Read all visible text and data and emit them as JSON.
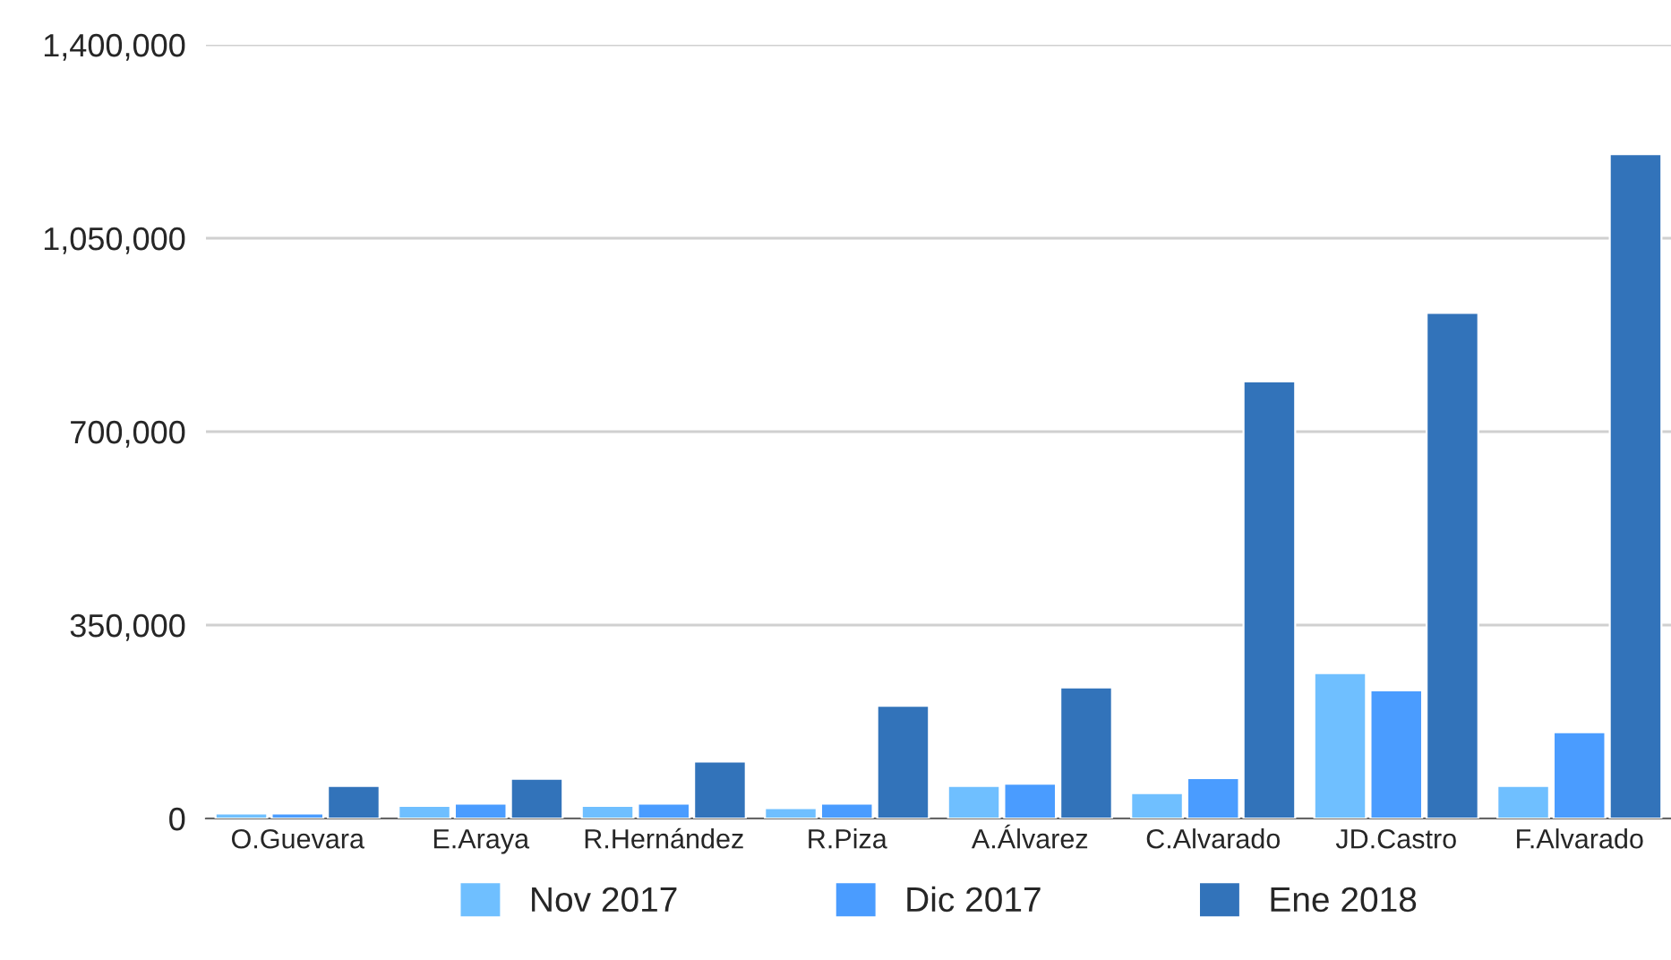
{
  "chart_data": {
    "type": "bar",
    "categories": [
      "O.Guevara",
      "E.Araya",
      "R.Hernández",
      "R.Piza",
      "A.Álvarez",
      "C.Alvarado",
      "JD.Castro",
      "F.Alvarado"
    ],
    "series": [
      {
        "name": "Nov 2017",
        "color": "#6fbfff",
        "values": [
          9000,
          23000,
          23000,
          19000,
          59000,
          46000,
          263000,
          59000
        ]
      },
      {
        "name": "Dic 2017",
        "color": "#4a9cff",
        "values": [
          9000,
          27000,
          27000,
          27000,
          63000,
          73000,
          232000,
          156000
        ]
      },
      {
        "name": "Ene 2018",
        "color": "#3273ba",
        "values": [
          59000,
          72000,
          103000,
          204000,
          237000,
          791000,
          915000,
          1202000
        ]
      }
    ],
    "ylim": [
      0,
      1400000
    ],
    "yticks": [
      {
        "value": 0,
        "label": "0"
      },
      {
        "value": 350000,
        "label": "350,000"
      },
      {
        "value": 700000,
        "label": "700,000"
      },
      {
        "value": 1050000,
        "label": "1,050,000"
      },
      {
        "value": 1400000,
        "label": "1,400,000"
      }
    ],
    "grid": "y",
    "legend": "bottom"
  }
}
